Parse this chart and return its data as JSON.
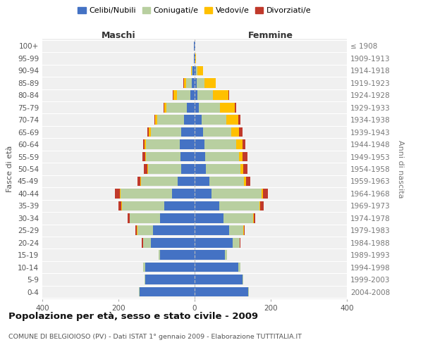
{
  "age_groups": [
    "0-4",
    "5-9",
    "10-14",
    "15-19",
    "20-24",
    "25-29",
    "30-34",
    "35-39",
    "40-44",
    "45-49",
    "50-54",
    "55-59",
    "60-64",
    "65-69",
    "70-74",
    "75-79",
    "80-84",
    "85-89",
    "90-94",
    "95-99",
    "100+"
  ],
  "birth_years": [
    "2004-2008",
    "1999-2003",
    "1994-1998",
    "1989-1993",
    "1984-1988",
    "1979-1983",
    "1974-1978",
    "1969-1973",
    "1964-1968",
    "1959-1963",
    "1954-1958",
    "1949-1953",
    "1944-1948",
    "1939-1943",
    "1934-1938",
    "1929-1933",
    "1924-1928",
    "1919-1923",
    "1914-1918",
    "1909-1913",
    "≤ 1908"
  ],
  "maschi": {
    "celibi": [
      145,
      130,
      130,
      90,
      115,
      110,
      90,
      80,
      60,
      45,
      35,
      37,
      38,
      35,
      28,
      20,
      12,
      8,
      5,
      2,
      2
    ],
    "coniugati": [
      2,
      2,
      5,
      5,
      20,
      40,
      80,
      110,
      135,
      95,
      88,
      90,
      90,
      80,
      70,
      55,
      35,
      15,
      3,
      0,
      0
    ],
    "vedovi": [
      0,
      0,
      0,
      0,
      1,
      1,
      1,
      2,
      2,
      2,
      2,
      2,
      3,
      5,
      5,
      5,
      8,
      5,
      2,
      0,
      0
    ],
    "divorziati": [
      0,
      0,
      0,
      0,
      2,
      5,
      5,
      8,
      12,
      8,
      8,
      8,
      5,
      5,
      3,
      2,
      2,
      1,
      0,
      0,
      0
    ]
  },
  "femmine": {
    "nubili": [
      140,
      125,
      115,
      80,
      100,
      90,
      75,
      65,
      45,
      38,
      30,
      28,
      25,
      22,
      18,
      12,
      8,
      5,
      3,
      2,
      2
    ],
    "coniugate": [
      2,
      2,
      5,
      5,
      18,
      38,
      78,
      105,
      130,
      92,
      90,
      88,
      85,
      75,
      65,
      55,
      40,
      20,
      5,
      0,
      0
    ],
    "vedove": [
      0,
      0,
      0,
      0,
      1,
      1,
      2,
      3,
      5,
      5,
      8,
      10,
      15,
      20,
      32,
      38,
      40,
      30,
      15,
      2,
      0
    ],
    "divorziate": [
      0,
      0,
      0,
      0,
      2,
      2,
      5,
      8,
      12,
      12,
      10,
      12,
      8,
      8,
      5,
      5,
      3,
      1,
      0,
      0,
      0
    ]
  },
  "colors": {
    "celibi": "#4472c4",
    "coniugati": "#b8cfa0",
    "vedovi": "#ffc000",
    "divorziati": "#c0392b"
  },
  "title": "Popolazione per età, sesso e stato civile - 2009",
  "subtitle": "COMUNE DI BELGIOIOSO (PV) - Dati ISTAT 1° gennaio 2009 - Elaborazione TUTTITALIA.IT",
  "xlabel_left": "Maschi",
  "xlabel_right": "Femmine",
  "ylabel_left": "Fasce di età",
  "ylabel_right": "Anni di nascita",
  "xlim": 400,
  "bg_color": "#f0f0f0"
}
